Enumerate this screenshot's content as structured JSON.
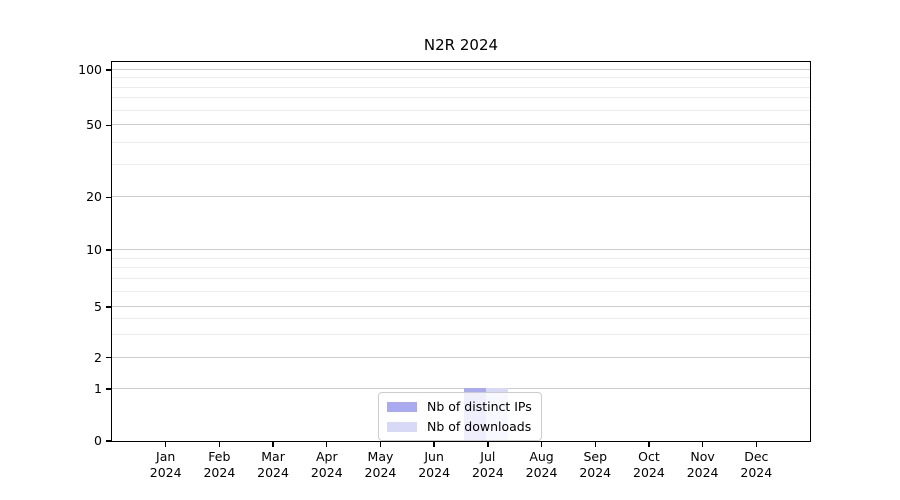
{
  "title": "N2R 2024",
  "chart_data": {
    "type": "bar",
    "categories": [
      "Jan",
      "Feb",
      "Mar",
      "Apr",
      "May",
      "Jun",
      "Jul",
      "Aug",
      "Sep",
      "Oct",
      "Nov",
      "Dec"
    ],
    "category_year": "2024",
    "series": [
      {
        "name": "Nb of distinct IPs",
        "color": "#aaaaf0",
        "values": [
          0,
          0,
          0,
          0,
          0,
          0,
          1,
          0,
          0,
          0,
          0,
          0
        ]
      },
      {
        "name": "Nb of downloads",
        "color": "#d8d8f7",
        "values": [
          0,
          0,
          0,
          0,
          0,
          0,
          1,
          0,
          0,
          0,
          0,
          0
        ]
      }
    ],
    "title": "N2R 2024",
    "xlabel": "",
    "ylabel": "",
    "yscale": "symlog",
    "yticks": [
      0,
      1,
      2,
      5,
      10,
      20,
      50,
      100
    ],
    "yminor_ticks": [
      3,
      4,
      6,
      7,
      8,
      9,
      30,
      40,
      60,
      70,
      80,
      90
    ],
    "ylim": [
      0,
      110
    ],
    "grid": true,
    "legend_position": "lower center"
  }
}
